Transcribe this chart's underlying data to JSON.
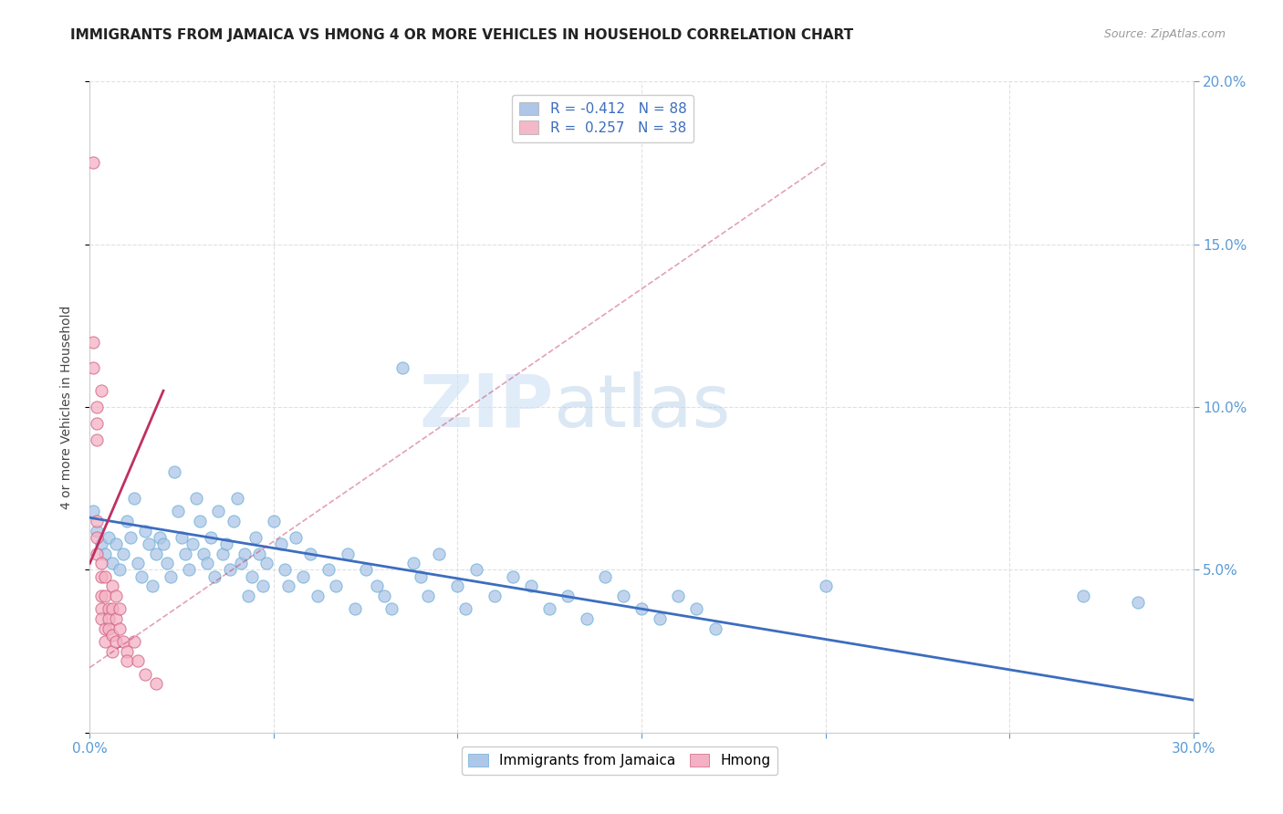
{
  "title": "IMMIGRANTS FROM JAMAICA VS HMONG 4 OR MORE VEHICLES IN HOUSEHOLD CORRELATION CHART",
  "source": "Source: ZipAtlas.com",
  "ylabel": "4 or more Vehicles in Household",
  "xlim": [
    0.0,
    0.3
  ],
  "ylim": [
    0.0,
    0.2
  ],
  "xticks": [
    0.0,
    0.05,
    0.1,
    0.15,
    0.2,
    0.25,
    0.3
  ],
  "yticks": [
    0.0,
    0.05,
    0.1,
    0.15,
    0.2
  ],
  "legend_entries": [
    {
      "label": "R = -0.412   N = 88",
      "color": "#aec6e8"
    },
    {
      "label": "R =  0.257   N = 38",
      "color": "#f4b8c8"
    }
  ],
  "jamaica_scatter": [
    [
      0.001,
      0.068
    ],
    [
      0.002,
      0.062
    ],
    [
      0.003,
      0.058
    ],
    [
      0.004,
      0.055
    ],
    [
      0.005,
      0.06
    ],
    [
      0.006,
      0.052
    ],
    [
      0.007,
      0.058
    ],
    [
      0.008,
      0.05
    ],
    [
      0.009,
      0.055
    ],
    [
      0.01,
      0.065
    ],
    [
      0.011,
      0.06
    ],
    [
      0.012,
      0.072
    ],
    [
      0.013,
      0.052
    ],
    [
      0.014,
      0.048
    ],
    [
      0.015,
      0.062
    ],
    [
      0.016,
      0.058
    ],
    [
      0.017,
      0.045
    ],
    [
      0.018,
      0.055
    ],
    [
      0.019,
      0.06
    ],
    [
      0.02,
      0.058
    ],
    [
      0.021,
      0.052
    ],
    [
      0.022,
      0.048
    ],
    [
      0.023,
      0.08
    ],
    [
      0.024,
      0.068
    ],
    [
      0.025,
      0.06
    ],
    [
      0.026,
      0.055
    ],
    [
      0.027,
      0.05
    ],
    [
      0.028,
      0.058
    ],
    [
      0.029,
      0.072
    ],
    [
      0.03,
      0.065
    ],
    [
      0.031,
      0.055
    ],
    [
      0.032,
      0.052
    ],
    [
      0.033,
      0.06
    ],
    [
      0.034,
      0.048
    ],
    [
      0.035,
      0.068
    ],
    [
      0.036,
      0.055
    ],
    [
      0.037,
      0.058
    ],
    [
      0.038,
      0.05
    ],
    [
      0.039,
      0.065
    ],
    [
      0.04,
      0.072
    ],
    [
      0.041,
      0.052
    ],
    [
      0.042,
      0.055
    ],
    [
      0.043,
      0.042
    ],
    [
      0.044,
      0.048
    ],
    [
      0.045,
      0.06
    ],
    [
      0.046,
      0.055
    ],
    [
      0.047,
      0.045
    ],
    [
      0.048,
      0.052
    ],
    [
      0.05,
      0.065
    ],
    [
      0.052,
      0.058
    ],
    [
      0.053,
      0.05
    ],
    [
      0.054,
      0.045
    ],
    [
      0.056,
      0.06
    ],
    [
      0.058,
      0.048
    ],
    [
      0.06,
      0.055
    ],
    [
      0.062,
      0.042
    ],
    [
      0.065,
      0.05
    ],
    [
      0.067,
      0.045
    ],
    [
      0.07,
      0.055
    ],
    [
      0.072,
      0.038
    ],
    [
      0.075,
      0.05
    ],
    [
      0.078,
      0.045
    ],
    [
      0.08,
      0.042
    ],
    [
      0.082,
      0.038
    ],
    [
      0.085,
      0.112
    ],
    [
      0.088,
      0.052
    ],
    [
      0.09,
      0.048
    ],
    [
      0.092,
      0.042
    ],
    [
      0.095,
      0.055
    ],
    [
      0.1,
      0.045
    ],
    [
      0.102,
      0.038
    ],
    [
      0.105,
      0.05
    ],
    [
      0.11,
      0.042
    ],
    [
      0.115,
      0.048
    ],
    [
      0.12,
      0.045
    ],
    [
      0.125,
      0.038
    ],
    [
      0.13,
      0.042
    ],
    [
      0.135,
      0.035
    ],
    [
      0.14,
      0.048
    ],
    [
      0.145,
      0.042
    ],
    [
      0.15,
      0.038
    ],
    [
      0.155,
      0.035
    ],
    [
      0.16,
      0.042
    ],
    [
      0.165,
      0.038
    ],
    [
      0.17,
      0.032
    ],
    [
      0.2,
      0.045
    ],
    [
      0.27,
      0.042
    ],
    [
      0.285,
      0.04
    ]
  ],
  "hmong_scatter": [
    [
      0.001,
      0.175
    ],
    [
      0.001,
      0.12
    ],
    [
      0.001,
      0.112
    ],
    [
      0.002,
      0.1
    ],
    [
      0.002,
      0.095
    ],
    [
      0.002,
      0.09
    ],
    [
      0.002,
      0.065
    ],
    [
      0.002,
      0.06
    ],
    [
      0.002,
      0.055
    ],
    [
      0.003,
      0.105
    ],
    [
      0.003,
      0.052
    ],
    [
      0.003,
      0.048
    ],
    [
      0.003,
      0.042
    ],
    [
      0.003,
      0.038
    ],
    [
      0.003,
      0.035
    ],
    [
      0.004,
      0.032
    ],
    [
      0.004,
      0.028
    ],
    [
      0.004,
      0.048
    ],
    [
      0.004,
      0.042
    ],
    [
      0.005,
      0.038
    ],
    [
      0.005,
      0.035
    ],
    [
      0.005,
      0.032
    ],
    [
      0.006,
      0.045
    ],
    [
      0.006,
      0.038
    ],
    [
      0.006,
      0.03
    ],
    [
      0.006,
      0.025
    ],
    [
      0.007,
      0.042
    ],
    [
      0.007,
      0.035
    ],
    [
      0.007,
      0.028
    ],
    [
      0.008,
      0.038
    ],
    [
      0.008,
      0.032
    ],
    [
      0.009,
      0.028
    ],
    [
      0.01,
      0.025
    ],
    [
      0.01,
      0.022
    ],
    [
      0.012,
      0.028
    ],
    [
      0.013,
      0.022
    ],
    [
      0.015,
      0.018
    ],
    [
      0.018,
      0.015
    ]
  ],
  "jamaica_line": [
    [
      0.0,
      0.066
    ],
    [
      0.3,
      0.01
    ]
  ],
  "hmong_line_solid": [
    [
      0.0,
      0.052
    ],
    [
      0.02,
      0.105
    ]
  ],
  "hmong_line_dash": [
    [
      0.0,
      0.02
    ],
    [
      0.2,
      0.175
    ]
  ],
  "background_color": "#ffffff",
  "grid_color": "#e0e0e0",
  "jamaica_color": "#aec6e8",
  "jamaica_edge": "#6baed6",
  "hmong_color": "#f4b0c4",
  "hmong_edge": "#d06080",
  "jamaica_line_color": "#3c6dbf",
  "hmong_line_color": "#c03060",
  "watermark_zip": "ZIP",
  "watermark_atlas": "atlas",
  "title_fontsize": 11,
  "source_fontsize": 9
}
